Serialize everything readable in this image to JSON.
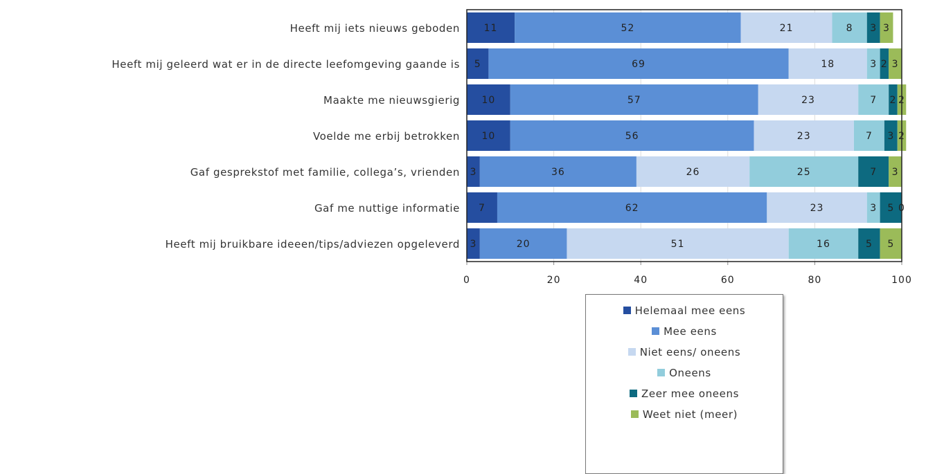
{
  "chart_data": {
    "type": "stacked-bar-horizontal",
    "categories": [
      "Heeft mij iets nieuws geboden",
      "Heeft mij geleerd wat er in de directe leefomgeving gaande is",
      "Maakte me nieuwsgierig",
      "Voelde me erbij betrokken",
      "Gaf gesprekstof met familie, collega’s, vrienden",
      "Gaf me nuttige informatie",
      "Heeft mij bruikbare ideeen/tips/adviezen opgeleverd"
    ],
    "series": [
      {
        "name": "Helemaal mee eens",
        "color": "#254ea0",
        "values": [
          11,
          5,
          10,
          10,
          3,
          7,
          3
        ]
      },
      {
        "name": "Mee eens",
        "color": "#5b8fd6",
        "values": [
          52,
          69,
          57,
          56,
          36,
          62,
          20
        ]
      },
      {
        "name": "Niet eens/ oneens",
        "color": "#c6d8f0",
        "values": [
          21,
          18,
          23,
          23,
          26,
          23,
          51
        ]
      },
      {
        "name": "Oneens",
        "color": "#92cddc",
        "values": [
          8,
          3,
          7,
          7,
          25,
          3,
          16
        ]
      },
      {
        "name": "Zeer mee oneens",
        "color": "#0d6a80",
        "values": [
          3,
          2,
          2,
          3,
          7,
          5,
          5
        ]
      },
      {
        "name": "Weet niet (meer)",
        "color": "#9bbb59",
        "values": [
          3,
          3,
          2,
          2,
          3,
          0,
          5
        ]
      }
    ],
    "xlim": [
      0,
      100
    ],
    "xticks": [
      0,
      20,
      40,
      60,
      80,
      100
    ],
    "grid": true,
    "legend": "bottom"
  }
}
